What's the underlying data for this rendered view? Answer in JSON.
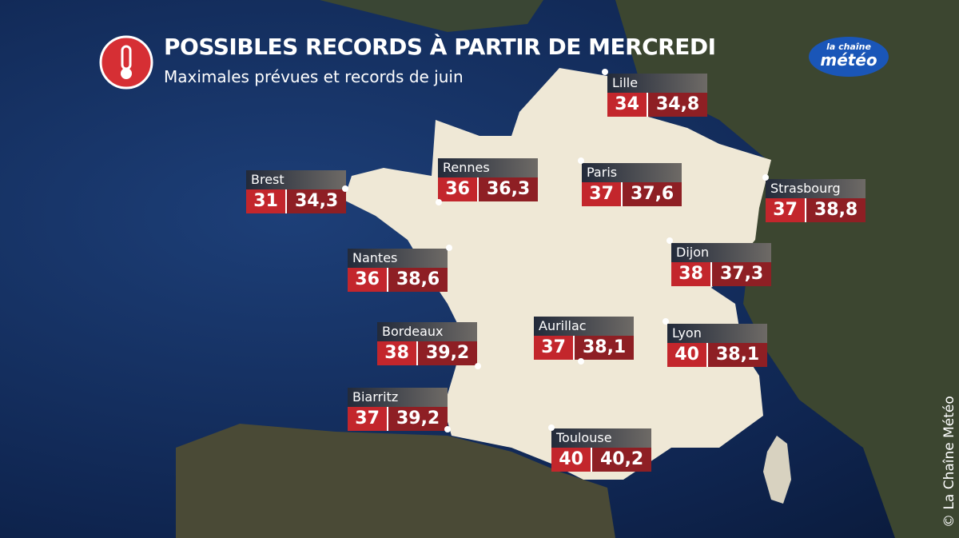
{
  "header": {
    "title": "POSSIBLES RECORDS À PARTIR DE MERCREDI",
    "subtitle": "Maximales prévues et records de juin"
  },
  "logo": {
    "line1": "la chaîne",
    "line2": "météo"
  },
  "credit": "© La Chaîne Météo",
  "cities": [
    {
      "name": "Lille",
      "forecast": 34,
      "record": "34,8"
    },
    {
      "name": "Brest",
      "forecast": 31,
      "record": "34,3"
    },
    {
      "name": "Rennes",
      "forecast": 36,
      "record": "36,3"
    },
    {
      "name": "Paris",
      "forecast": 37,
      "record": "37,6"
    },
    {
      "name": "Strasbourg",
      "forecast": 37,
      "record": "38,8"
    },
    {
      "name": "Nantes",
      "forecast": 36,
      "record": "38,6"
    },
    {
      "name": "Dijon",
      "forecast": 38,
      "record": "37,3"
    },
    {
      "name": "Bordeaux",
      "forecast": 38,
      "record": "39,2"
    },
    {
      "name": "Aurillac",
      "forecast": 37,
      "record": "38,1"
    },
    {
      "name": "Lyon",
      "forecast": 40,
      "record": "38,1"
    },
    {
      "name": "Biarritz",
      "forecast": 37,
      "record": "39,2"
    },
    {
      "name": "Toulouse",
      "forecast": 40,
      "record": "40,2"
    }
  ]
}
